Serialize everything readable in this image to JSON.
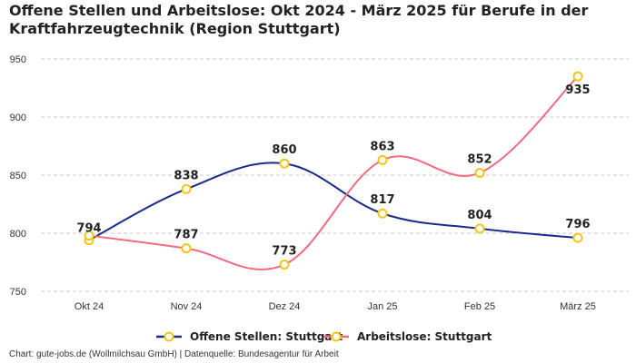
{
  "chart_data": {
    "type": "line",
    "title": "Offene Stellen und Arbeitslose: Okt 2024 - März 2025 für Berufe in der Kraftfahrzeugtechnik (Region Stuttgart)",
    "categories": [
      "Okt 24",
      "Nov 24",
      "Dez 24",
      "Jan 25",
      "Feb 25",
      "März 25"
    ],
    "series": [
      {
        "name": "Offene Stellen: Stuttgart",
        "color": "#1a2a8a",
        "values": [
          794,
          838,
          860,
          817,
          804,
          796
        ]
      },
      {
        "name": "Arbeitslose: Stuttgart",
        "color": "#f06b80",
        "values": [
          798,
          787,
          773,
          863,
          852,
          935
        ]
      }
    ],
    "data_labels": [
      "794",
      "838",
      "860",
      "863",
      "817",
      "852",
      "787",
      "773",
      "804",
      "796",
      "935"
    ],
    "ylim": [
      750,
      950
    ],
    "yticks": [
      750,
      800,
      850,
      900,
      950
    ],
    "xlabel": "",
    "ylabel": "",
    "grid": true,
    "legend_position": "bottom-center",
    "marker_color": "#f5c518"
  },
  "source": "Chart: gute-jobs.de (Wollmilchsau GmbH) | Datenquelle: Bundesagentur für Arbeit"
}
